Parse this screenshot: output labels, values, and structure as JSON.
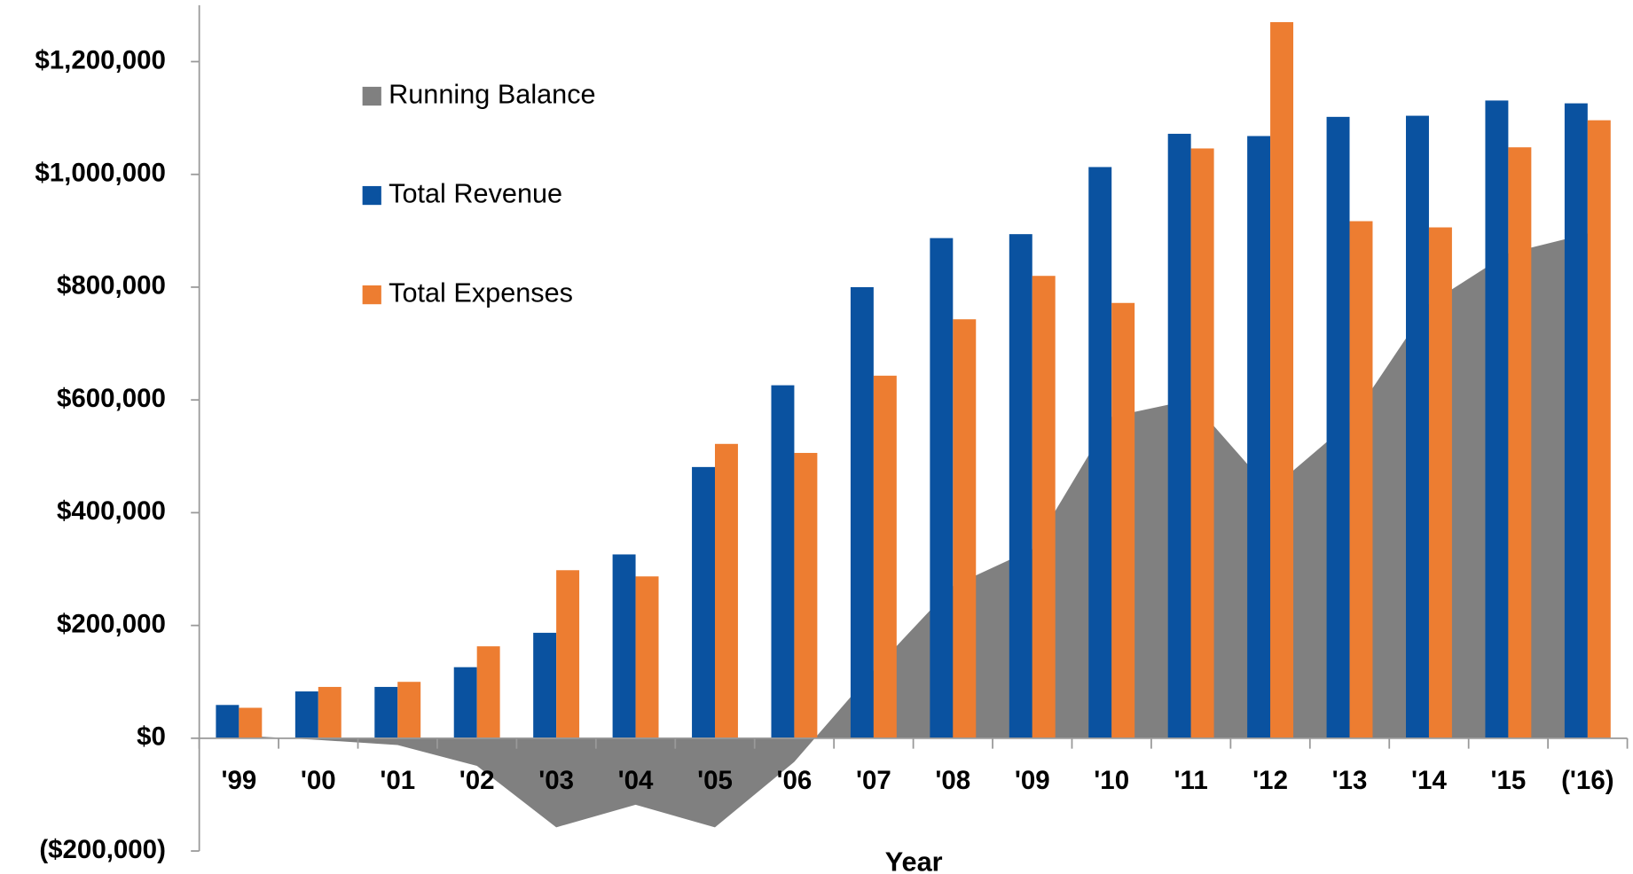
{
  "chart_data": {
    "type": "bar_area",
    "x_label": "Year",
    "categories": [
      "'99",
      "'00",
      "'01",
      "'02",
      "'03",
      "'04",
      "'05",
      "'06",
      "'07",
      "'08",
      "'09",
      "'10",
      "'11",
      "'12",
      "'13",
      "'14",
      "'15",
      "('16)"
    ],
    "series": [
      {
        "name": "Running Balance",
        "kind": "area",
        "color": "#808080",
        "values": [
          5000,
          -3000,
          -12000,
          -49000,
          -158000,
          -118000,
          -158000,
          -42000,
          120000,
          270000,
          335000,
          570000,
          600000,
          440000,
          560000,
          770000,
          860000,
          895000
        ]
      },
      {
        "name": "Total Revenue",
        "kind": "bar",
        "color": "#0a52a0",
        "values": [
          59000,
          83000,
          91000,
          126000,
          187000,
          326000,
          481000,
          626000,
          800000,
          887000,
          894000,
          1013000,
          1072000,
          1068000,
          1102000,
          1104000,
          1131000,
          1126000
        ]
      },
      {
        "name": "Total Expenses",
        "kind": "bar",
        "color": "#ed7d31",
        "values": [
          54000,
          91000,
          100000,
          163000,
          298000,
          287000,
          522000,
          506000,
          643000,
          743000,
          820000,
          772000,
          1046000,
          1270000,
          917000,
          906000,
          1048000,
          1096000
        ]
      }
    ],
    "ylim": [
      -200000,
      1300000
    ],
    "yticks": [
      {
        "value": -200000,
        "label": "($200,000)"
      },
      {
        "value": 0,
        "label": "$0"
      },
      {
        "value": 200000,
        "label": "$200,000"
      },
      {
        "value": 400000,
        "label": "$400,000"
      },
      {
        "value": 600000,
        "label": "$600,000"
      },
      {
        "value": 800000,
        "label": "$800,000"
      },
      {
        "value": 1000000,
        "label": "$1,000,000"
      },
      {
        "value": 1200000,
        "label": "$1,200,000"
      }
    ],
    "negative_tick_color": "#e00000",
    "legend": "upper left",
    "grid": false
  }
}
